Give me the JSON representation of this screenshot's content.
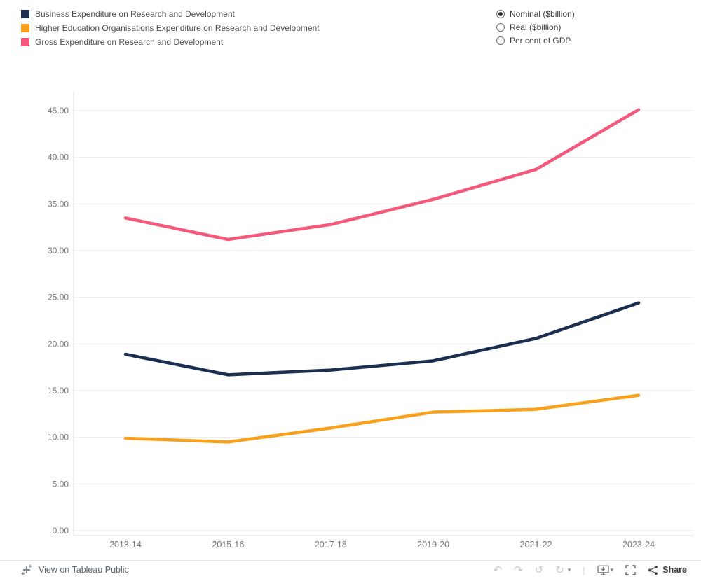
{
  "legend": {
    "items": [
      {
        "label": "Business Expenditure on Research and Development",
        "color": "#1b3051"
      },
      {
        "label": "Higher Education Organisations Expenditure on Research and Development",
        "color": "#f7a11c"
      },
      {
        "label": "Gross Expenditure on Research and Development",
        "color": "#f4597c"
      }
    ]
  },
  "controls": {
    "options": [
      {
        "label": "Nominal ($billion)",
        "selected": true
      },
      {
        "label": "Real ($billion)",
        "selected": false
      },
      {
        "label": "Per cent of GDP",
        "selected": false
      }
    ]
  },
  "chart_data": {
    "type": "line",
    "x": [
      "2013-14",
      "2015-16",
      "2017-18",
      "2019-20",
      "2021-22",
      "2023-24"
    ],
    "series": [
      {
        "name": "Gross Expenditure on Research and Development",
        "color": "#f4597c",
        "values": [
          33.5,
          31.2,
          32.8,
          35.5,
          38.7,
          45.1
        ]
      },
      {
        "name": "Business Expenditure on Research and Development",
        "color": "#1b3051",
        "values": [
          18.9,
          16.7,
          17.2,
          18.2,
          20.6,
          24.4
        ]
      },
      {
        "name": "Higher Education Organisations Expenditure on Research and Development",
        "color": "#f7a11c",
        "values": [
          9.9,
          9.5,
          11.0,
          12.7,
          13.0,
          14.5
        ]
      }
    ],
    "title": "",
    "xlabel": "",
    "ylabel": "",
    "ylim": [
      0,
      45
    ],
    "yticks": [
      0,
      5,
      10,
      15,
      20,
      25,
      30,
      35,
      40,
      45
    ],
    "ytick_labels": [
      "0.00",
      "5.00",
      "10.00",
      "15.00",
      "20.00",
      "25.00",
      "30.00",
      "35.00",
      "40.00",
      "45.00"
    ],
    "grid": true,
    "legend_position": "top-left"
  },
  "toolbar": {
    "view_label": "View on Tableau Public",
    "share_label": "Share"
  }
}
